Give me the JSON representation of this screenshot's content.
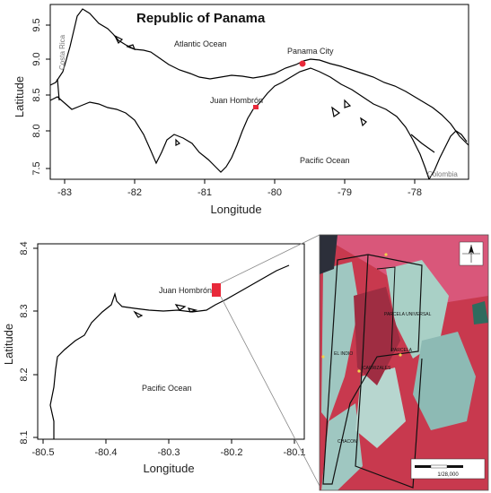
{
  "top_map": {
    "title": "Republic of Panama",
    "xlabel": "Longitude",
    "ylabel": "Latitude",
    "x_ticks": [
      "-83",
      "-82",
      "-81",
      "-80",
      "-79",
      "-78"
    ],
    "y_ticks": [
      "7.5",
      "8.0",
      "8.5",
      "9.0",
      "9.5"
    ],
    "labels": {
      "atlantic": "Atlantic Ocean",
      "pacific": "Pacific Ocean",
      "costa_rica": "Costa Rica",
      "colombia": "Colombia",
      "panama_city": "Panama City",
      "juan_hombron": "Juan Hombrón"
    },
    "marker_color": "#e8293a"
  },
  "bottom_map": {
    "xlabel": "Longitude",
    "ylabel": "Latitude",
    "x_ticks": [
      "-80.5",
      "-80.4",
      "-80.3",
      "-80.2",
      "-80.1"
    ],
    "y_ticks": [
      "8.1",
      "8.2",
      "8.3",
      "8.4"
    ],
    "labels": {
      "juan_hombron": "Juan Hombrón",
      "pacific": "Pacific Ocean"
    },
    "marker_color": "#e8293a"
  },
  "satellite_inset": {
    "scale_text": "1/28,000",
    "field_labels": [
      "PARCELA UNIVERSAL",
      "EL INDIO",
      "CARRIZALES",
      "PARCELA",
      "CHACON"
    ],
    "palette": {
      "vegetation": "#c8394e",
      "bare": "#9fc7c1",
      "dark": "#2c2f3a"
    }
  }
}
